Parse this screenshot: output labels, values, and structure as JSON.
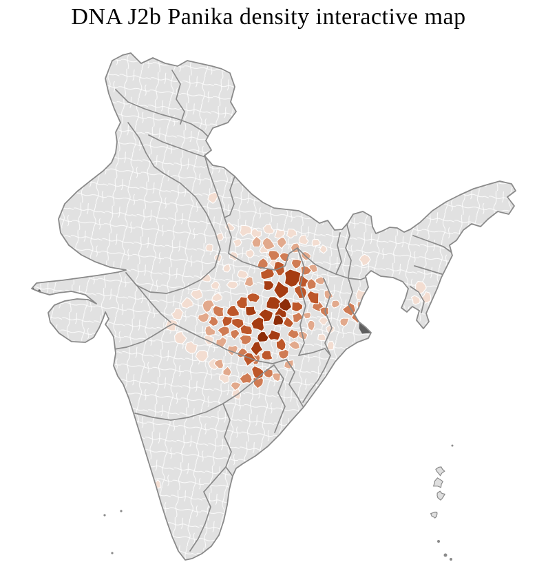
{
  "page": {
    "title": "DNA J2b Panika density interactive map"
  },
  "map": {
    "type": "choropleth",
    "region": "India, district-level",
    "palette": {
      "background": "#ffffff",
      "no_data": "#e1e1e1",
      "levels": [
        "#f3ddd1",
        "#e2a98c",
        "#d07c54",
        "#bd572a",
        "#a53c12",
        "#8d2d08"
      ],
      "special_dark": "#5e5e5e",
      "district_border": "#ffffff",
      "state_border": "#8a8a8a",
      "island_fill": "#dfdfdf"
    },
    "shading": {
      "levels_low_to_high": true,
      "shape_levels": [
        6,
        6,
        6,
        5,
        5,
        5,
        5,
        5,
        5,
        5,
        5,
        5,
        5,
        4,
        4,
        4,
        4,
        4,
        4,
        4,
        4,
        4,
        4,
        4,
        4,
        4,
        4,
        4,
        4,
        4,
        3,
        3,
        3,
        3,
        3,
        3,
        3,
        3,
        3,
        3,
        3,
        3,
        3,
        3,
        3,
        3,
        3,
        3,
        3,
        3,
        3,
        3,
        3,
        2,
        2,
        2,
        2,
        2,
        2,
        2,
        2,
        2,
        2,
        2,
        2,
        2,
        2,
        2,
        2,
        2,
        2,
        2,
        2,
        2,
        2,
        2,
        2,
        2,
        2,
        2,
        1,
        1,
        1,
        1,
        1,
        1,
        1,
        1,
        1,
        1,
        1,
        1,
        1,
        1,
        1,
        1,
        1,
        1,
        1,
        1,
        1,
        1,
        1,
        1,
        1,
        1,
        1,
        1,
        1,
        1,
        1,
        1,
        1,
        1,
        1,
        1,
        1,
        1,
        1,
        1,
        1,
        1,
        1,
        1,
        1,
        1,
        1,
        1,
        1
      ]
    }
  }
}
